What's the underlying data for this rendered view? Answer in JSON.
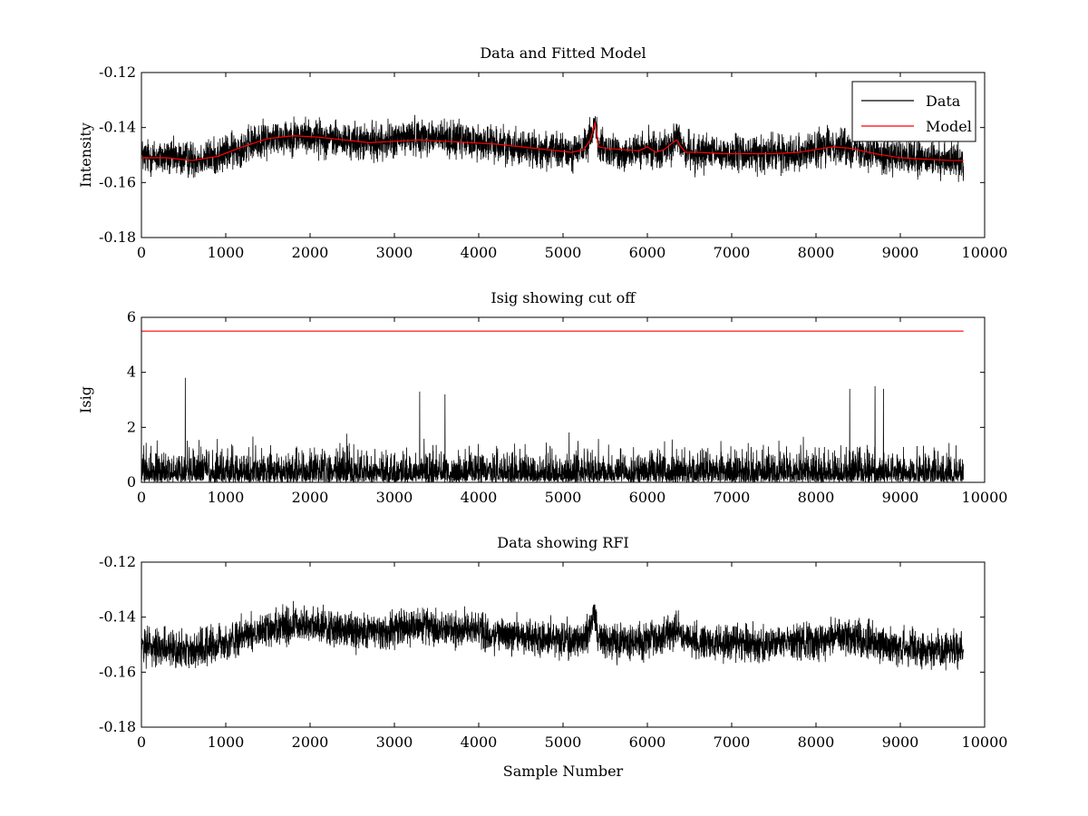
{
  "figure": {
    "background": "#ffffff"
  },
  "chart_data": [
    {
      "type": "line",
      "title": "Data and Fitted Model",
      "xlabel": "",
      "ylabel": "Intensity",
      "xlim": [
        0,
        10000
      ],
      "ylim": [
        -0.18,
        -0.12
      ],
      "xticks": [
        0,
        1000,
        2000,
        3000,
        4000,
        5000,
        6000,
        7000,
        8000,
        9000,
        10000
      ],
      "xtick_labels": [
        "0",
        "1000",
        "2000",
        "3000",
        "4000",
        "5000",
        "6000",
        "7000",
        "8000",
        "9000",
        "10000"
      ],
      "yticks": [
        -0.18,
        -0.16,
        -0.14,
        -0.12
      ],
      "ytick_labels": [
        "-0.18",
        "-0.16",
        "-0.14",
        "-0.12"
      ],
      "grid": false,
      "legend": {
        "position": "top-right",
        "entries": [
          "Data",
          "Model"
        ]
      },
      "n_samples": 9750,
      "series": [
        {
          "name": "Data",
          "color": "#000000",
          "kind": "noisy",
          "noise_halfwidth": 0.006,
          "baseline": {
            "x": [
              0,
              300,
              600,
              900,
              1200,
              1500,
              1800,
              2100,
              2400,
              2700,
              3000,
              3300,
              3600,
              3900,
              4200,
              4500,
              4800,
              5100,
              5250,
              5330,
              5380,
              5420,
              5500,
              5700,
              5900,
              6050,
              6200,
              6300,
              6350,
              6450,
              6600,
              6900,
              7200,
              7500,
              7800,
              8000,
              8200,
              8400,
              8700,
              9000,
              9300,
              9600,
              9750
            ],
            "y": [
              -0.1505,
              -0.151,
              -0.1515,
              -0.1505,
              -0.147,
              -0.144,
              -0.143,
              -0.1435,
              -0.145,
              -0.1455,
              -0.1445,
              -0.143,
              -0.144,
              -0.145,
              -0.146,
              -0.147,
              -0.1485,
              -0.149,
              -0.148,
              -0.143,
              -0.138,
              -0.146,
              -0.149,
              -0.149,
              -0.149,
              -0.148,
              -0.1475,
              -0.146,
              -0.144,
              -0.148,
              -0.1495,
              -0.1495,
              -0.1495,
              -0.1495,
              -0.149,
              -0.148,
              -0.1465,
              -0.147,
              -0.149,
              -0.151,
              -0.152,
              -0.152,
              -0.152
            ]
          }
        },
        {
          "name": "Model",
          "color": "#ff0000",
          "kind": "smooth",
          "x": [
            0,
            300,
            600,
            900,
            1200,
            1500,
            1800,
            2100,
            2400,
            2700,
            3000,
            3300,
            3600,
            3900,
            4200,
            4500,
            4800,
            5100,
            5250,
            5330,
            5380,
            5400,
            5420,
            5500,
            5700,
            5900,
            6000,
            6100,
            6200,
            6300,
            6350,
            6400,
            6450,
            6600,
            6900,
            7200,
            7500,
            7800,
            8000,
            8200,
            8400,
            8700,
            9000,
            9300,
            9600,
            9750
          ],
          "y": [
            -0.151,
            -0.151,
            -0.152,
            -0.1505,
            -0.147,
            -0.144,
            -0.143,
            -0.1435,
            -0.1445,
            -0.1455,
            -0.145,
            -0.1445,
            -0.145,
            -0.1455,
            -0.146,
            -0.147,
            -0.148,
            -0.149,
            -0.148,
            -0.144,
            -0.138,
            -0.142,
            -0.147,
            -0.1475,
            -0.148,
            -0.1485,
            -0.147,
            -0.149,
            -0.148,
            -0.1455,
            -0.1445,
            -0.147,
            -0.149,
            -0.149,
            -0.1495,
            -0.1495,
            -0.1495,
            -0.149,
            -0.148,
            -0.147,
            -0.1475,
            -0.1495,
            -0.151,
            -0.1515,
            -0.152,
            -0.152
          ]
        }
      ]
    },
    {
      "type": "line",
      "title": "Isig showing cut off",
      "xlabel": "",
      "ylabel": "Isig",
      "xlim": [
        0,
        10000
      ],
      "ylim": [
        0,
        6
      ],
      "xticks": [
        0,
        1000,
        2000,
        3000,
        4000,
        5000,
        6000,
        7000,
        8000,
        9000,
        10000
      ],
      "xtick_labels": [
        "0",
        "1000",
        "2000",
        "3000",
        "4000",
        "5000",
        "6000",
        "7000",
        "8000",
        "9000",
        "10000"
      ],
      "yticks": [
        0,
        2,
        4,
        6
      ],
      "ytick_labels": [
        "0",
        "2",
        "4",
        "6"
      ],
      "grid": false,
      "n_samples": 9750,
      "series": [
        {
          "color": "#000000",
          "kind": "abs-noise",
          "typical_max": 2.2,
          "peaks": [
            {
              "x": 520,
              "y": 3.8
            },
            {
              "x": 3300,
              "y": 3.3
            },
            {
              "x": 3600,
              "y": 3.2
            },
            {
              "x": 8400,
              "y": 3.4
            },
            {
              "x": 8700,
              "y": 3.5
            },
            {
              "x": 8800,
              "y": 3.4
            }
          ]
        },
        {
          "color": "#ff0000",
          "kind": "constant",
          "x": [
            0,
            9750
          ],
          "y": [
            5.5,
            5.5
          ]
        }
      ]
    },
    {
      "type": "line",
      "title": "Data showing RFI",
      "xlabel": "Sample Number",
      "ylabel": "",
      "xlim": [
        0,
        10000
      ],
      "ylim": [
        -0.18,
        -0.12
      ],
      "xticks": [
        0,
        1000,
        2000,
        3000,
        4000,
        5000,
        6000,
        7000,
        8000,
        9000,
        10000
      ],
      "xtick_labels": [
        "0",
        "1000",
        "2000",
        "3000",
        "4000",
        "5000",
        "6000",
        "7000",
        "8000",
        "9000",
        "10000"
      ],
      "yticks": [
        -0.18,
        -0.16,
        -0.14,
        -0.12
      ],
      "ytick_labels": [
        "-0.18",
        "-0.16",
        "-0.14",
        "-0.12"
      ],
      "grid": false,
      "n_samples": 9750,
      "series": [
        {
          "color": "#000000",
          "kind": "noisy",
          "noise_halfwidth": 0.006,
          "baseline": {
            "x": [
              0,
              300,
              600,
              900,
              1200,
              1500,
              1800,
              2100,
              2400,
              2700,
              3000,
              3300,
              3600,
              3900,
              4200,
              4500,
              4800,
              5100,
              5250,
              5330,
              5380,
              5420,
              5500,
              5700,
              5900,
              6050,
              6200,
              6300,
              6350,
              6450,
              6600,
              6900,
              7200,
              7500,
              7800,
              8000,
              8200,
              8400,
              8700,
              9000,
              9300,
              9600,
              9750
            ],
            "y": [
              -0.1505,
              -0.151,
              -0.1515,
              -0.1505,
              -0.147,
              -0.144,
              -0.143,
              -0.1435,
              -0.145,
              -0.1455,
              -0.1445,
              -0.143,
              -0.144,
              -0.145,
              -0.146,
              -0.147,
              -0.1485,
              -0.149,
              -0.148,
              -0.143,
              -0.138,
              -0.146,
              -0.149,
              -0.149,
              -0.149,
              -0.148,
              -0.1475,
              -0.146,
              -0.144,
              -0.148,
              -0.1495,
              -0.1495,
              -0.1495,
              -0.1495,
              -0.149,
              -0.148,
              -0.1465,
              -0.147,
              -0.149,
              -0.151,
              -0.152,
              -0.152,
              -0.152
            ]
          }
        }
      ]
    }
  ]
}
